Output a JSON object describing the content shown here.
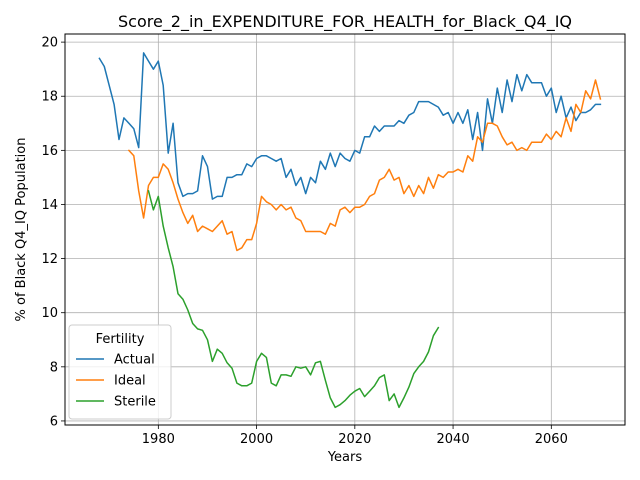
{
  "chart_data": {
    "type": "line",
    "title": "Score_2_in_EXPENDITURE_FOR_HEALTH_for_Black_Q4_IQ",
    "xlabel": "Years",
    "ylabel": "% of Black Q4_IQ Population",
    "xlim": [
      1961,
      2075
    ],
    "ylim": [
      5.85,
      20.3
    ],
    "xticks": [
      1980,
      2000,
      2020,
      2040,
      2060
    ],
    "yticks": [
      6,
      8,
      10,
      12,
      14,
      16,
      18,
      20
    ],
    "grid": true,
    "legend": {
      "title": "Fertility",
      "position": "lower-left"
    },
    "series": [
      {
        "name": "Actual",
        "color": "#1f77b4",
        "x": [
          1968,
          1969,
          1970,
          1971,
          1972,
          1973,
          1974,
          1975,
          1976,
          1977,
          1978,
          1979,
          1980,
          1981,
          1982,
          1983,
          1984,
          1985,
          1986,
          1987,
          1988,
          1989,
          1990,
          1991,
          1992,
          1993,
          1994,
          1995,
          1996,
          1997,
          1998,
          1999,
          2000,
          2001,
          2002,
          2003,
          2004,
          2005,
          2006,
          2007,
          2008,
          2009,
          2010,
          2011,
          2012,
          2013,
          2014,
          2015,
          2016,
          2017,
          2018,
          2019,
          2020,
          2021,
          2022,
          2023,
          2024,
          2025,
          2026,
          2027,
          2028,
          2029,
          2030,
          2031,
          2032,
          2033,
          2034,
          2035,
          2036,
          2037,
          2038,
          2039,
          2040,
          2041,
          2042,
          2043,
          2044,
          2045,
          2046,
          2047,
          2048,
          2049,
          2050,
          2051,
          2052,
          2053,
          2054,
          2055,
          2056,
          2057,
          2058,
          2059,
          2060,
          2061,
          2062,
          2063,
          2064,
          2065,
          2066,
          2067,
          2068,
          2069,
          2070
        ],
        "values": [
          19.4,
          19.1,
          18.4,
          17.7,
          16.4,
          17.2,
          17.0,
          16.8,
          16.1,
          19.6,
          19.3,
          19.0,
          19.3,
          18.4,
          15.9,
          17.0,
          14.8,
          14.3,
          14.4,
          14.4,
          14.5,
          15.8,
          15.4,
          14.2,
          14.3,
          14.3,
          15.0,
          15.0,
          15.1,
          15.1,
          15.5,
          15.4,
          15.7,
          15.8,
          15.8,
          15.7,
          15.6,
          15.7,
          15.0,
          15.3,
          14.7,
          15.0,
          14.4,
          15.0,
          14.8,
          15.6,
          15.3,
          15.9,
          15.4,
          15.9,
          15.7,
          15.6,
          16.0,
          15.9,
          16.5,
          16.5,
          16.9,
          16.7,
          16.9,
          16.9,
          16.9,
          17.1,
          17.0,
          17.3,
          17.4,
          17.8,
          17.8,
          17.8,
          17.7,
          17.6,
          17.3,
          17.4,
          17.0,
          17.4,
          17.0,
          17.5,
          16.4,
          17.4,
          16.0,
          17.9,
          17.0,
          18.3,
          17.4,
          18.6,
          17.8,
          18.8,
          18.2,
          18.8,
          18.5,
          18.5,
          18.5,
          18.0,
          18.3,
          17.4,
          18.0,
          17.2,
          17.6,
          17.1,
          17.4,
          17.4,
          17.5,
          17.7,
          17.7
        ]
      },
      {
        "name": "Ideal",
        "color": "#ff7f0e",
        "x": [
          1974,
          1975,
          1976,
          1977,
          1978,
          1979,
          1980,
          1981,
          1982,
          1983,
          1984,
          1985,
          1986,
          1987,
          1988,
          1989,
          1990,
          1991,
          1992,
          1993,
          1994,
          1995,
          1996,
          1997,
          1998,
          1999,
          2000,
          2001,
          2002,
          2003,
          2004,
          2005,
          2006,
          2007,
          2008,
          2009,
          2010,
          2011,
          2012,
          2013,
          2014,
          2015,
          2016,
          2017,
          2018,
          2019,
          2020,
          2021,
          2022,
          2023,
          2024,
          2025,
          2026,
          2027,
          2028,
          2029,
          2030,
          2031,
          2032,
          2033,
          2034,
          2035,
          2036,
          2037,
          2038,
          2039,
          2040,
          2041,
          2042,
          2043,
          2044,
          2045,
          2046,
          2047,
          2048,
          2049,
          2050,
          2051,
          2052,
          2053,
          2054,
          2055,
          2056,
          2057,
          2058,
          2059,
          2060,
          2061,
          2062,
          2063,
          2064,
          2065,
          2066,
          2067,
          2068,
          2069,
          2070
        ],
        "values": [
          16.0,
          15.8,
          14.5,
          13.5,
          14.7,
          15.0,
          15.0,
          15.5,
          15.3,
          14.8,
          14.2,
          13.7,
          13.3,
          13.6,
          13.0,
          13.2,
          13.1,
          13.0,
          13.2,
          13.4,
          12.9,
          13.0,
          12.3,
          12.4,
          12.7,
          12.7,
          13.3,
          14.3,
          14.1,
          14.0,
          13.8,
          14.0,
          13.8,
          13.9,
          13.5,
          13.4,
          13.0,
          13.0,
          13.0,
          13.0,
          12.9,
          13.3,
          13.2,
          13.8,
          13.9,
          13.7,
          13.9,
          13.9,
          14.0,
          14.3,
          14.4,
          14.9,
          15.0,
          15.3,
          14.9,
          15.0,
          14.4,
          14.7,
          14.3,
          14.7,
          14.4,
          15.0,
          14.6,
          15.1,
          15.0,
          15.2,
          15.2,
          15.3,
          15.2,
          15.8,
          15.6,
          16.5,
          16.3,
          17.0,
          17.0,
          16.9,
          16.5,
          16.2,
          16.3,
          16.0,
          16.1,
          16.0,
          16.3,
          16.3,
          16.3,
          16.6,
          16.4,
          16.7,
          16.5,
          17.2,
          16.7,
          17.7,
          17.4,
          18.2,
          17.9,
          18.6,
          17.9
        ]
      },
      {
        "name": "Sterile",
        "color": "#2ca02c",
        "x": [
          1978,
          1979,
          1980,
          1981,
          1982,
          1983,
          1984,
          1985,
          1986,
          1987,
          1988,
          1989,
          1990,
          1991,
          1992,
          1993,
          1994,
          1995,
          1996,
          1997,
          1998,
          1999,
          2000,
          2001,
          2002,
          2003,
          2004,
          2005,
          2006,
          2007,
          2008,
          2009,
          2010,
          2011,
          2012,
          2013,
          2014,
          2015,
          2016,
          2017,
          2018,
          2019,
          2020,
          2021,
          2022,
          2023,
          2024,
          2025,
          2026,
          2027,
          2028,
          2029,
          2030,
          2031,
          2032,
          2033,
          2034,
          2035,
          2036,
          2037
        ],
        "values": [
          14.5,
          13.8,
          14.3,
          13.2,
          12.4,
          11.7,
          10.7,
          10.5,
          10.1,
          9.6,
          9.4,
          9.35,
          9.0,
          8.2,
          8.65,
          8.5,
          8.15,
          7.95,
          7.4,
          7.3,
          7.3,
          7.4,
          8.2,
          8.5,
          8.35,
          7.4,
          7.3,
          7.7,
          7.7,
          7.65,
          8.0,
          7.95,
          8.0,
          7.7,
          8.15,
          8.2,
          7.5,
          6.85,
          6.5,
          6.6,
          6.75,
          6.95,
          7.1,
          7.2,
          6.9,
          7.1,
          7.3,
          7.6,
          7.7,
          6.75,
          7.0,
          6.5,
          6.85,
          7.25,
          7.75,
          8.0,
          8.2,
          8.55,
          9.15,
          9.45
        ]
      }
    ]
  }
}
